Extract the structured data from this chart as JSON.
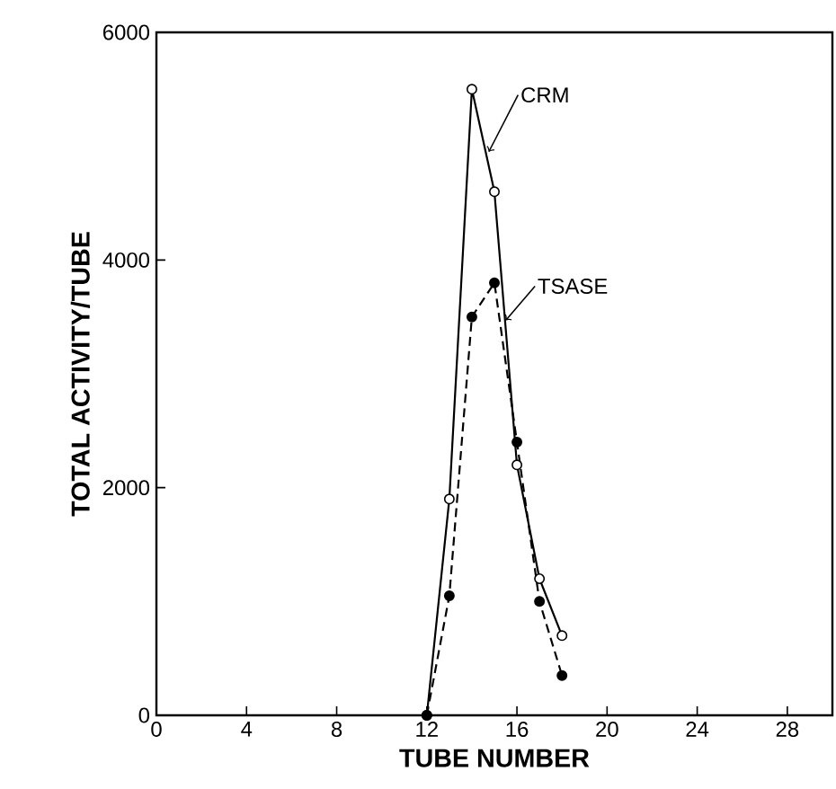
{
  "chart_data": {
    "type": "line",
    "xlabel": "TUBE NUMBER",
    "ylabel": "TOTAL ACTIVITY/TUBE",
    "xlim": [
      0,
      30
    ],
    "ylim": [
      0,
      6000
    ],
    "xticks": [
      0,
      4,
      8,
      12,
      16,
      20,
      24,
      28
    ],
    "yticks": [
      0,
      2000,
      4000,
      6000
    ],
    "grid": false,
    "legend": false,
    "marker": "circle",
    "series": [
      {
        "name": "CRM",
        "color": "#000000",
        "line_style": "solid",
        "x": [
          12,
          13,
          14,
          15,
          16,
          17,
          18
        ],
        "values": [
          0,
          1900,
          5500,
          4600,
          2200,
          1200,
          700
        ]
      },
      {
        "name": "TSASE",
        "color": "#000000",
        "line_style": "dashed",
        "x": [
          12,
          13,
          14,
          15,
          16,
          17,
          18
        ],
        "values": [
          0,
          1050,
          3500,
          3800,
          2400,
          1000,
          350
        ]
      }
    ]
  }
}
